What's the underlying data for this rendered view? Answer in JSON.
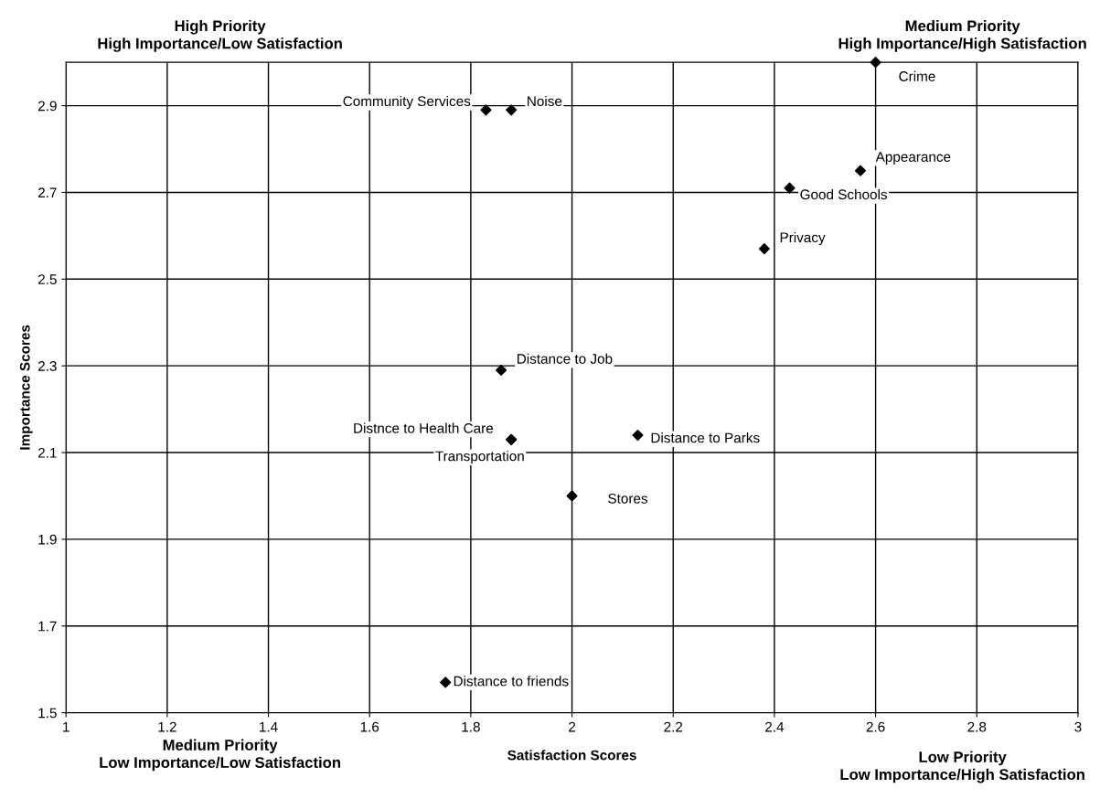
{
  "chart_data": {
    "type": "scatter",
    "xlabel": "Satisfaction Scores",
    "ylabel": "Importance Scores",
    "x": [
      1.83,
      1.88,
      2.6,
      2.57,
      2.43,
      2.38,
      1.86,
      1.88,
      1.88,
      2.13,
      2.0,
      1.75
    ],
    "series": [
      {
        "color": "#000000",
        "values": [
          2.89,
          2.89,
          3.0,
          2.75,
          2.71,
          2.57,
          2.29,
          2.13,
          2.13,
          2.14,
          2.0,
          1.57
        ]
      }
    ],
    "xlim": [
      1,
      3
    ],
    "ylim": [
      1.5,
      3.0
    ],
    "xticks": [
      1,
      1.2,
      1.4,
      1.6,
      1.8,
      2,
      2.2,
      2.4,
      2.6,
      2.8,
      3
    ],
    "yticks": [
      1.5,
      1.7,
      1.9,
      2.1,
      2.3,
      2.5,
      2.7,
      2.9
    ],
    "grid": true,
    "marker": "diamond",
    "annotations": [
      {
        "text": "Community Services",
        "x": 1.83,
        "y": 2.89
      },
      {
        "text": "Noise",
        "x": 1.88,
        "y": 2.89
      },
      {
        "text": "Crime",
        "x": 2.6,
        "y": 3.0
      },
      {
        "text": "Appearance",
        "x": 2.57,
        "y": 2.75
      },
      {
        "text": "Good Schools",
        "x": 2.43,
        "y": 2.71
      },
      {
        "text": "Privacy",
        "x": 2.38,
        "y": 2.57
      },
      {
        "text": "Distance to Job",
        "x": 1.86,
        "y": 2.29
      },
      {
        "text": "Distnce to Health Care",
        "x": 1.88,
        "y": 2.13
      },
      {
        "text": "Transportation",
        "x": 1.88,
        "y": 2.13
      },
      {
        "text": "Distance to Parks",
        "x": 2.13,
        "y": 2.14
      },
      {
        "text": "Stores",
        "x": 2.0,
        "y": 2.0
      },
      {
        "text": "Distance to friends",
        "x": 1.75,
        "y": 1.57
      },
      "High Priority\nHigh Importance/Low Satisfaction",
      "Medium Priority\nHigh Importance/High Satisfaction",
      "Medium Priority\nLow Importance/Low Satisfaction",
      "Low Priority\nLow Importance/High Satisfaction"
    ]
  }
}
